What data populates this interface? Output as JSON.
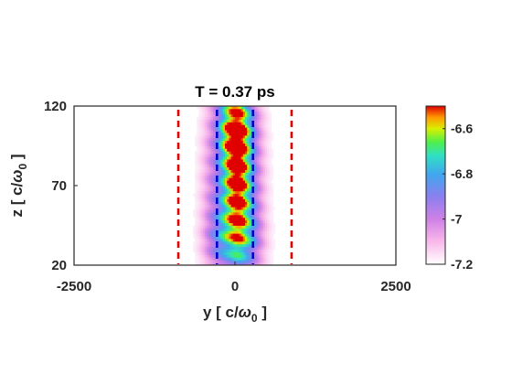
{
  "chart_data": {
    "type": "heatmap",
    "title": "T = 0.37 ps",
    "xlabel": {
      "main": "y [ c/",
      "greek": "ω",
      "sub": "0",
      "tail": " ]"
    },
    "ylabel": {
      "main": "z [ c/",
      "greek": "ω",
      "sub": "0",
      "tail": " ]"
    },
    "xlim": [
      -2500,
      2500
    ],
    "ylim": [
      20,
      120
    ],
    "xticks": [
      -2500,
      0,
      2500
    ],
    "yticks": [
      20,
      70,
      120
    ],
    "xtick_labels": [
      "-2500",
      "0",
      "2500"
    ],
    "ytick_labels": [
      "20",
      "70",
      "120"
    ],
    "colorbar": {
      "range": [
        -7.2,
        -6.5
      ],
      "ticks": [
        -7.2,
        -7.0,
        -6.8,
        -6.6
      ],
      "tick_labels": [
        "-7.2",
        "-7",
        "-6.8",
        "-6.6"
      ],
      "colormap": [
        {
          "value": -7.2,
          "color": "#ffffff"
        },
        {
          "value": -7.1,
          "color": "#f9b8ea"
        },
        {
          "value": -7.0,
          "color": "#cf80e6"
        },
        {
          "value": -6.9,
          "color": "#8a7ff0"
        },
        {
          "value": -6.8,
          "color": "#3fa8ee"
        },
        {
          "value": -6.72,
          "color": "#2fe0c4"
        },
        {
          "value": -6.66,
          "color": "#4ef04a"
        },
        {
          "value": -6.6,
          "color": "#d8f000"
        },
        {
          "value": -6.55,
          "color": "#ff9900"
        },
        {
          "value": -6.5,
          "color": "#e00000"
        }
      ]
    },
    "lines": [
      {
        "name": "outer-left",
        "x": -880,
        "color": "#e00000",
        "style": "dashed"
      },
      {
        "name": "inner-left",
        "x": -280,
        "color": "#0000cc",
        "style": "dashed"
      },
      {
        "name": "inner-right",
        "x": 280,
        "color": "#0000cc",
        "style": "dashed"
      },
      {
        "name": "outer-right",
        "x": 880,
        "color": "#e00000",
        "style": "dashed"
      }
    ],
    "field_blobs": [
      {
        "y": 20,
        "z": 95,
        "sy": 140,
        "sz": 24,
        "amp": 0.62
      },
      {
        "y": 40,
        "z": 60,
        "sy": 130,
        "sz": 26,
        "amp": 0.55
      },
      {
        "y": 0,
        "z": 108,
        "sy": 190,
        "sz": 12,
        "amp": 0.45
      },
      {
        "y": -120,
        "z": 80,
        "sy": 170,
        "sz": 48,
        "amp": 0.32
      },
      {
        "y": 140,
        "z": 78,
        "sy": 150,
        "sz": 48,
        "amp": 0.3
      },
      {
        "y": -330,
        "z": 68,
        "sy": 150,
        "sz": 40,
        "amp": 0.22
      },
      {
        "y": 320,
        "z": 70,
        "sy": 140,
        "sz": 40,
        "amp": 0.2
      },
      {
        "y": -250,
        "z": 35,
        "sy": 180,
        "sz": 12,
        "amp": 0.18
      },
      {
        "y": 220,
        "z": 34,
        "sy": 180,
        "sz": 12,
        "amp": 0.16
      },
      {
        "y": 0,
        "z": 40,
        "sy": 220,
        "sz": 16,
        "amp": 0.22
      }
    ]
  }
}
